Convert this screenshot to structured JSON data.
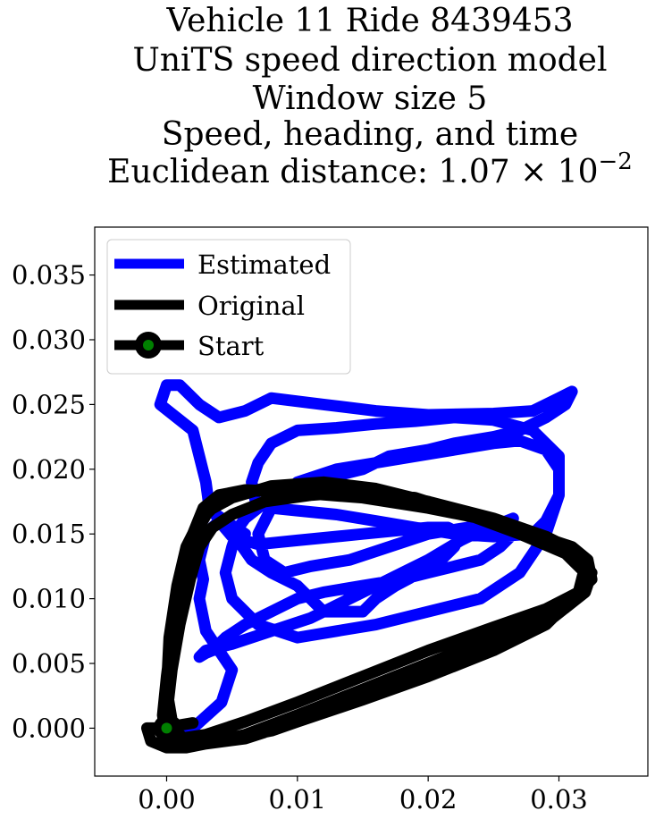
{
  "chart_data": {
    "type": "line",
    "title_lines": [
      "Vehicle 11 Ride 8439453",
      "UniTS speed direction model",
      "Window size 5",
      "Speed, heading, and time"
    ],
    "title_metric_prefix": "Euclidean distance: ",
    "title_metric_mantissa": "1.07",
    "title_metric_base": "10",
    "title_metric_exponent": "−2",
    "xlim": [
      -0.0055,
      0.0368
    ],
    "ylim": [
      -0.0037,
      0.0387
    ],
    "x_ticks": [
      {
        "value": 0.0,
        "label": "0.00"
      },
      {
        "value": 0.01,
        "label": "0.01"
      },
      {
        "value": 0.02,
        "label": "0.02"
      },
      {
        "value": 0.03,
        "label": "0.03"
      }
    ],
    "y_ticks": [
      {
        "value": 0.0,
        "label": "0.000"
      },
      {
        "value": 0.005,
        "label": "0.005"
      },
      {
        "value": 0.01,
        "label": "0.010"
      },
      {
        "value": 0.015,
        "label": "0.015"
      },
      {
        "value": 0.02,
        "label": "0.020"
      },
      {
        "value": 0.025,
        "label": "0.025"
      },
      {
        "value": 0.03,
        "label": "0.030"
      },
      {
        "value": 0.035,
        "label": "0.035"
      }
    ],
    "legend": {
      "placement": "upper-left",
      "entries": [
        {
          "label": "Estimated",
          "color": "#0000ff",
          "style": "line"
        },
        {
          "label": "Original",
          "color": "#000000",
          "style": "line"
        },
        {
          "label": "Start",
          "color": "#000000",
          "marker_color": "#008000",
          "style": "line-marker"
        }
      ]
    },
    "series": [
      {
        "name": "Estimated",
        "color": "#0000ff",
        "x": [
          0.0,
          0.002,
          0.0042,
          0.005,
          0.004,
          0.003,
          0.0025,
          0.0028,
          0.0025,
          0.003,
          0.004,
          0.0038,
          0.0045,
          0.006,
          0.0058,
          0.0065,
          0.008,
          0.01,
          0.011,
          0.012,
          0.015,
          0.016,
          0.0175,
          0.019,
          0.02,
          0.021,
          0.022,
          0.0225,
          0.0215,
          0.02,
          0.015,
          0.01,
          0.007,
          0.005,
          0.004,
          0.0032,
          0.003,
          0.0025,
          0.002,
          -0.0005,
          0.0,
          0.001,
          0.0025,
          0.004,
          0.006,
          0.008,
          0.012,
          0.016,
          0.02,
          0.025,
          0.028,
          0.03,
          0.031,
          0.0305,
          0.029,
          0.027,
          0.025,
          0.022,
          0.02,
          0.017,
          0.015,
          0.013,
          0.011,
          0.009,
          0.008,
          0.0075,
          0.007,
          0.006,
          0.0055,
          0.005,
          0.0045,
          0.005,
          0.007,
          0.01,
          0.013,
          0.016,
          0.02,
          0.024,
          0.027,
          0.029,
          0.03,
          0.03,
          0.028,
          0.025,
          0.022,
          0.019,
          0.016,
          0.013,
          0.01,
          0.008,
          0.007,
          0.0065,
          0.0068,
          0.008,
          0.01,
          0.013,
          0.016,
          0.019,
          0.022,
          0.025,
          0.028,
          0.029,
          0.03,
          0.03,
          0.029,
          0.027,
          0.025,
          0.022,
          0.019,
          0.016,
          0.013,
          0.01,
          0.008,
          0.007,
          0.0075,
          0.009,
          0.011,
          0.014,
          0.017,
          0.02,
          0.023,
          0.025,
          0.026,
          0.0265,
          0.0255,
          0.024,
          0.022,
          0.02,
          0.018,
          0.015,
          0.012,
          0.01,
          0.008,
          0.006,
          0.0045,
          0.004,
          0.0035,
          0.003,
          0.0025,
          0.003,
          0.005,
          0.008,
          0.011,
          0.014,
          0.017,
          0.02,
          0.0225,
          0.0245,
          0.026,
          0.0265
        ],
        "y": [
          0.0,
          0.0,
          0.002,
          0.0045,
          0.006,
          0.0075,
          0.01,
          0.0115,
          0.013,
          0.015,
          0.016,
          0.0165,
          0.016,
          0.015,
          0.014,
          0.013,
          0.012,
          0.011,
          0.01,
          0.009,
          0.009,
          0.01,
          0.011,
          0.0118,
          0.0125,
          0.013,
          0.014,
          0.015,
          0.0155,
          0.0155,
          0.015,
          0.0145,
          0.0142,
          0.0148,
          0.016,
          0.0175,
          0.019,
          0.021,
          0.023,
          0.025,
          0.0265,
          0.0265,
          0.025,
          0.024,
          0.0245,
          0.0255,
          0.025,
          0.0245,
          0.0242,
          0.0243,
          0.0245,
          0.0255,
          0.026,
          0.025,
          0.024,
          0.023,
          0.0225,
          0.022,
          0.0215,
          0.021,
          0.02,
          0.0195,
          0.019,
          0.0185,
          0.018,
          0.0175,
          0.017,
          0.0162,
          0.0155,
          0.014,
          0.012,
          0.01,
          0.008,
          0.007,
          0.0075,
          0.008,
          0.009,
          0.01,
          0.012,
          0.015,
          0.018,
          0.021,
          0.023,
          0.0238,
          0.024,
          0.0237,
          0.0235,
          0.0232,
          0.023,
          0.022,
          0.0205,
          0.019,
          0.0175,
          0.017,
          0.0168,
          0.0165,
          0.016,
          0.0155,
          0.015,
          0.0148,
          0.015,
          0.016,
          0.018,
          0.02,
          0.0215,
          0.0222,
          0.022,
          0.0215,
          0.021,
          0.0205,
          0.02,
          0.019,
          0.017,
          0.015,
          0.013,
          0.012,
          0.0125,
          0.013,
          0.014,
          0.015,
          0.0155,
          0.016,
          0.0157,
          0.015,
          0.014,
          0.013,
          0.0125,
          0.012,
          0.0115,
          0.011,
          0.0105,
          0.01,
          0.009,
          0.008,
          0.007,
          0.0065,
          0.006,
          0.0058,
          0.0055,
          0.006,
          0.0065,
          0.0075,
          0.0085,
          0.01,
          0.0115,
          0.013,
          0.0145,
          0.0155,
          0.016,
          0.0162
        ]
      },
      {
        "name": "Original",
        "color": "#000000",
        "x": [
          0.0,
          -0.0015,
          -0.0012,
          0.0,
          0.0015,
          0.003,
          0.006,
          0.01,
          0.015,
          0.02,
          0.025,
          0.029,
          0.031,
          0.0325,
          0.0322,
          0.031,
          0.028,
          0.025,
          0.02,
          0.015,
          0.01,
          0.006,
          0.004,
          0.0028,
          0.002,
          0.0012,
          0.0005,
          0.0,
          -0.0003,
          0.0,
          0.001,
          0.003,
          0.006,
          0.01,
          0.015,
          0.02,
          0.025,
          0.029,
          0.0315,
          0.032,
          0.031,
          0.029,
          0.025,
          0.02,
          0.015,
          0.01,
          0.006,
          0.004,
          0.0025,
          0.0015,
          0.0008,
          0.0002,
          0.0,
          0.0005,
          0.0015,
          0.004,
          0.008,
          0.012,
          0.016,
          0.02,
          0.025,
          0.0295,
          0.032,
          0.0325,
          0.031,
          0.028,
          0.024,
          0.02,
          0.016,
          0.012,
          0.008,
          0.005,
          0.0032,
          0.0022,
          0.0015,
          0.0008,
          0.0003,
          0.0,
          0.001,
          0.003,
          0.006,
          0.01,
          0.015,
          0.02,
          0.025,
          0.029,
          0.0315,
          0.0322,
          0.0305,
          0.027,
          0.023,
          0.019,
          0.015,
          0.011,
          0.0075,
          0.005,
          0.0035,
          0.0025,
          0.0018,
          0.001,
          0.0004,
          0.0,
          0.0008,
          0.002
        ],
        "y": [
          0.0,
          0.0,
          -0.001,
          -0.0015,
          -0.0015,
          -0.0012,
          -0.0005,
          0.001,
          0.003,
          0.005,
          0.007,
          0.0085,
          0.01,
          0.0115,
          0.013,
          0.014,
          0.015,
          0.016,
          0.017,
          0.0178,
          0.0182,
          0.0184,
          0.018,
          0.017,
          0.015,
          0.012,
          0.008,
          0.004,
          0.001,
          -0.0008,
          -0.0012,
          -0.0012,
          -0.0008,
          0.0005,
          0.0022,
          0.004,
          0.006,
          0.008,
          0.0105,
          0.0125,
          0.0138,
          0.0148,
          0.0162,
          0.0175,
          0.0182,
          0.0185,
          0.0183,
          0.0175,
          0.016,
          0.014,
          0.011,
          0.007,
          0.003,
          0.0,
          -0.001,
          -0.001,
          -0.0002,
          0.0012,
          0.0028,
          0.0045,
          0.0065,
          0.0085,
          0.0105,
          0.012,
          0.0138,
          0.015,
          0.0163,
          0.0175,
          0.0185,
          0.019,
          0.0187,
          0.0178,
          0.0168,
          0.015,
          0.0125,
          0.009,
          0.005,
          0.001,
          -0.0008,
          -0.0005,
          0.0005,
          0.002,
          0.004,
          0.006,
          0.0078,
          0.0092,
          0.0105,
          0.0118,
          0.0135,
          0.015,
          0.0165,
          0.0178,
          0.0183,
          0.018,
          0.0175,
          0.0165,
          0.0155,
          0.014,
          0.0115,
          0.008,
          0.0045,
          0.001,
          0.0002,
          0.0004
        ]
      }
    ],
    "start_point": {
      "x": 0.0,
      "y": 0.0
    }
  }
}
